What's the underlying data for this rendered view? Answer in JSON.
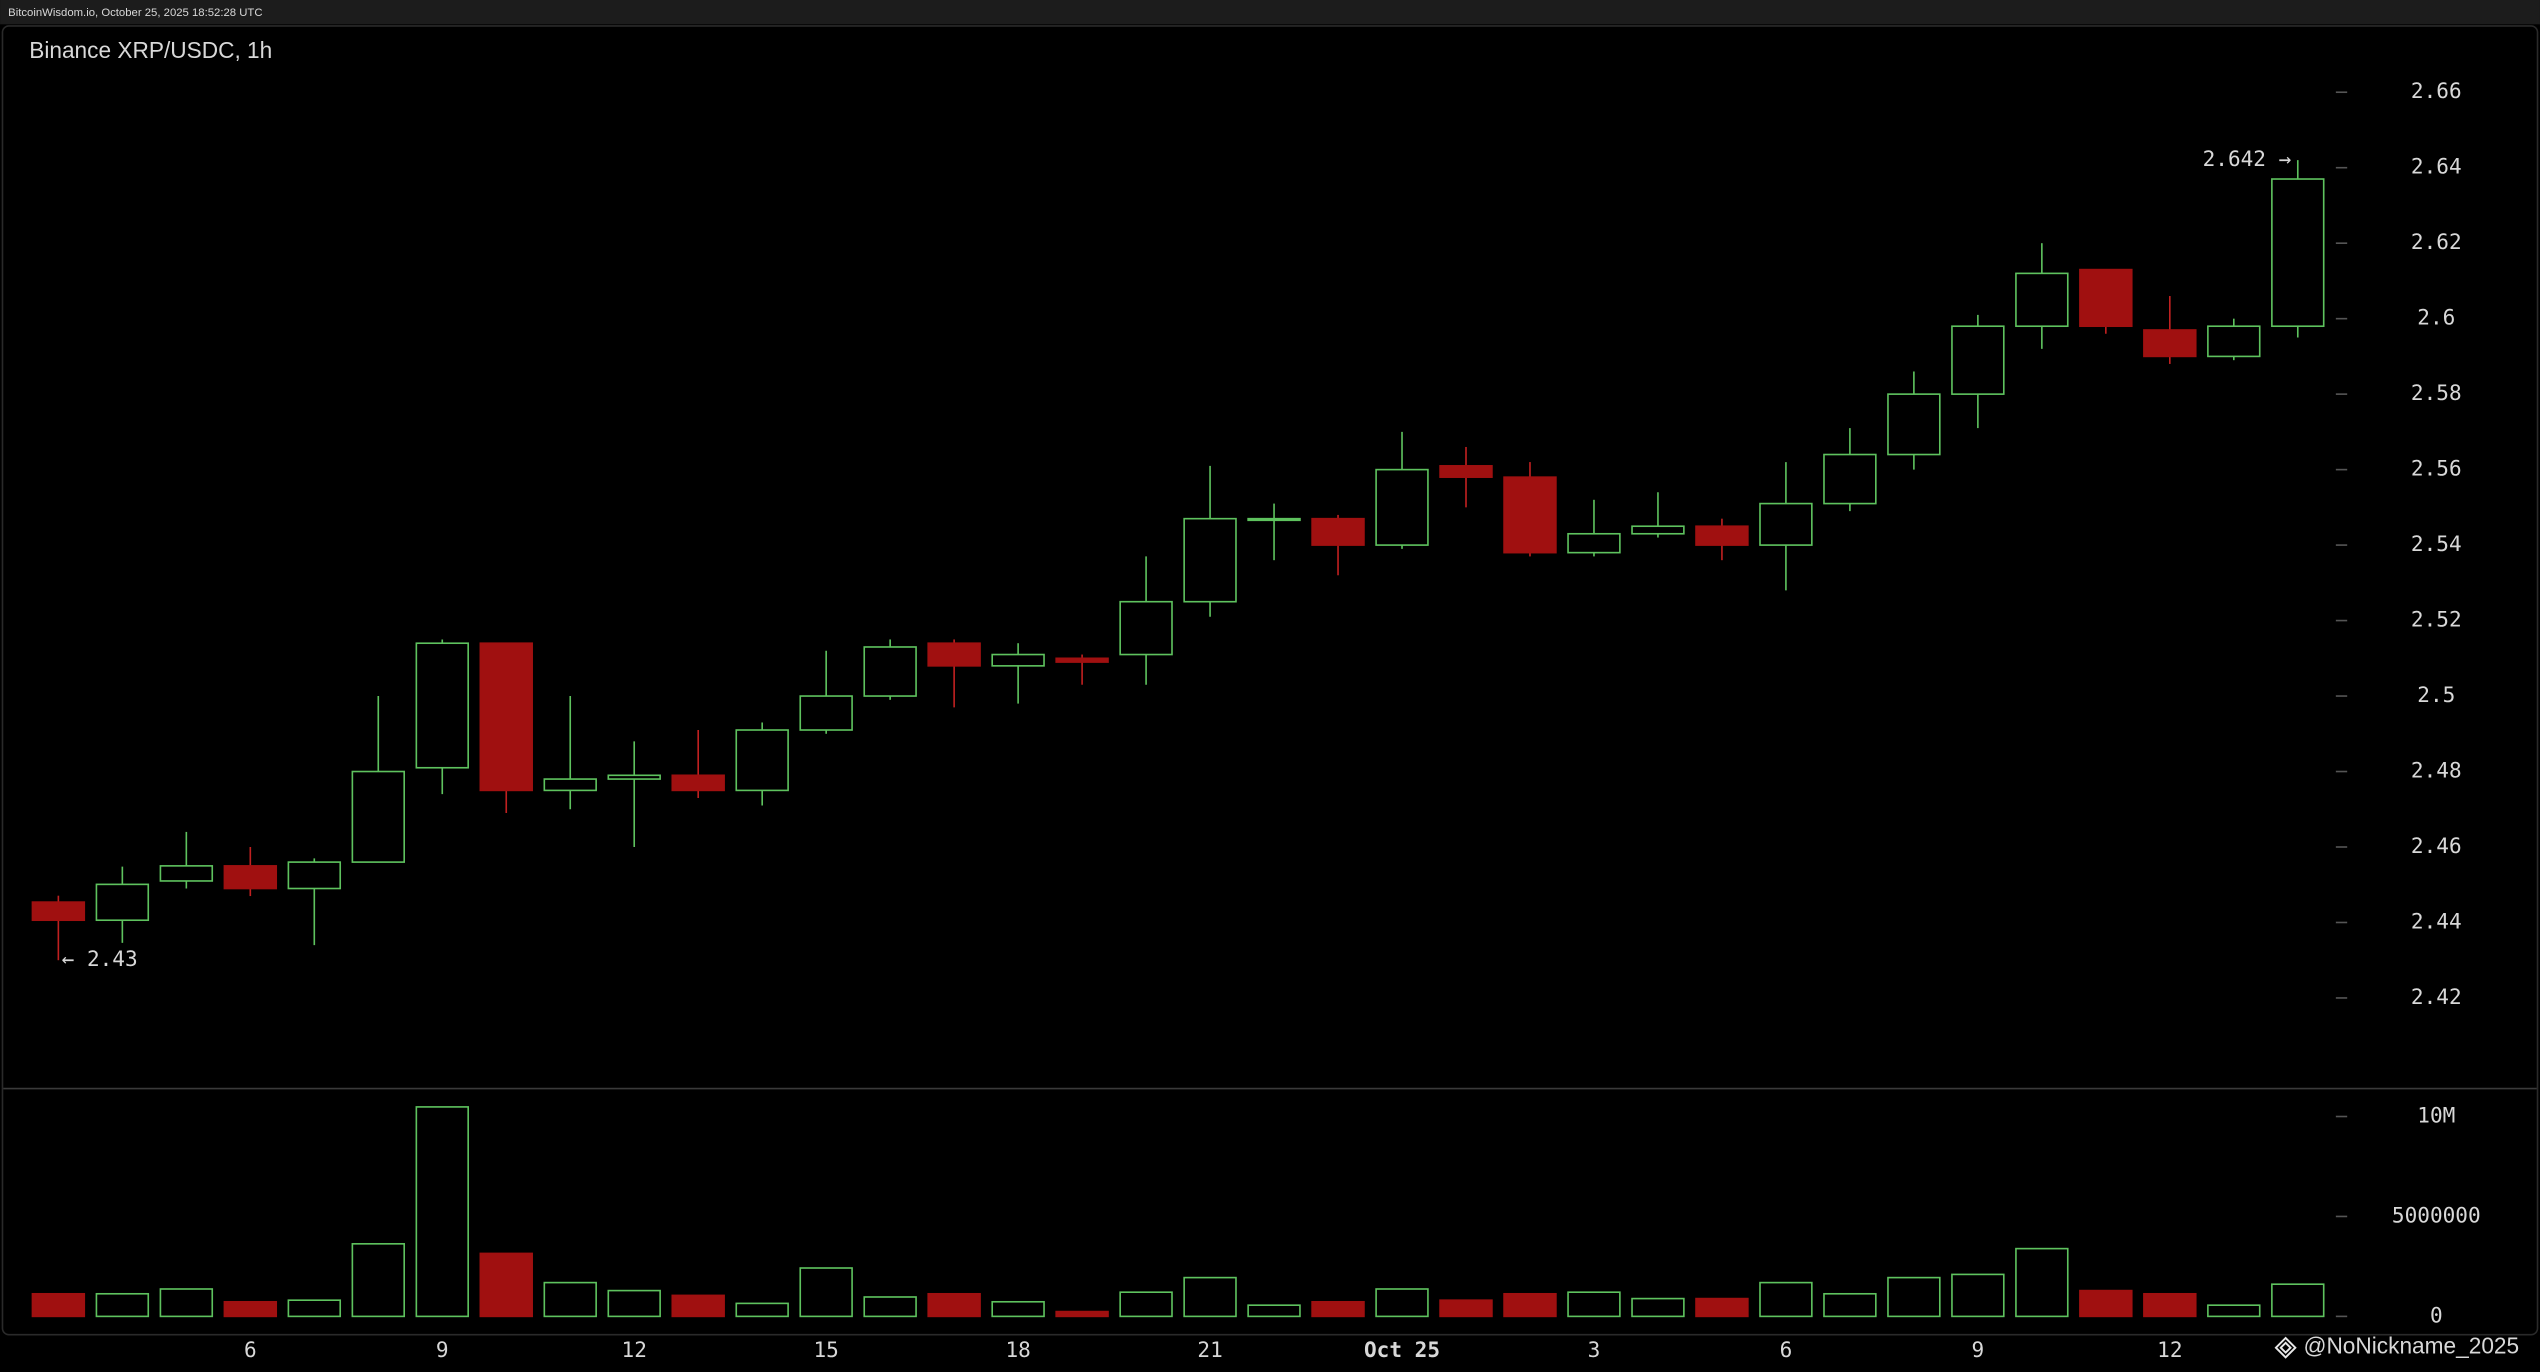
{
  "header": "BitcoinWisdom.io, October 25, 2025 18:52:28 UTC",
  "watermark": "@NoNickname_2025",
  "chart_data": {
    "type": "candlestick",
    "title": "Binance XRP/USDC, 1h",
    "up_color": "#5ec25e",
    "down_color": "#a01010",
    "categories": [
      null,
      null,
      null,
      "6",
      null,
      null,
      "9",
      null,
      null,
      "12",
      null,
      null,
      "15",
      null,
      null,
      "18",
      null,
      null,
      "21",
      null,
      null,
      "Oct 25",
      null,
      null,
      "3",
      null,
      null,
      "6",
      null,
      null,
      "9",
      null,
      null,
      "12",
      null,
      null
    ],
    "open": [
      2.4454,
      2.4406,
      2.451,
      2.455,
      2.449,
      2.456,
      2.481,
      2.514,
      2.475,
      2.478,
      2.479,
      2.475,
      2.491,
      2.5,
      2.514,
      2.508,
      2.51,
      2.511,
      2.525,
      2.547,
      2.547,
      2.54,
      2.561,
      2.558,
      2.538,
      2.543,
      2.545,
      2.54,
      2.551,
      2.564,
      2.58,
      2.598,
      2.613,
      2.597,
      2.59,
      2.598
    ],
    "high": [
      2.4471,
      2.4548,
      2.464,
      2.46,
      2.457,
      2.5,
      2.515,
      2.514,
      2.5,
      2.488,
      2.491,
      2.493,
      2.512,
      2.515,
      2.515,
      2.514,
      2.511,
      2.537,
      2.561,
      2.551,
      2.548,
      2.57,
      2.566,
      2.562,
      2.552,
      2.554,
      2.547,
      2.562,
      2.571,
      2.586,
      2.601,
      2.62,
      2.613,
      2.606,
      2.6,
      2.642
    ],
    "low": [
      2.43,
      2.4346,
      2.449,
      2.447,
      2.434,
      2.456,
      2.474,
      2.469,
      2.47,
      2.46,
      2.473,
      2.471,
      2.49,
      2.499,
      2.497,
      2.498,
      2.503,
      2.503,
      2.521,
      2.536,
      2.532,
      2.539,
      2.55,
      2.537,
      2.537,
      2.542,
      2.536,
      2.528,
      2.549,
      2.56,
      2.571,
      2.592,
      2.596,
      2.588,
      2.589,
      2.595
    ],
    "close": [
      2.4406,
      2.4501,
      2.455,
      2.449,
      2.456,
      2.48,
      2.514,
      2.475,
      2.478,
      2.479,
      2.475,
      2.491,
      2.5,
      2.513,
      2.508,
      2.511,
      2.509,
      2.525,
      2.547,
      2.547,
      2.54,
      2.56,
      2.558,
      2.538,
      2.543,
      2.545,
      2.54,
      2.551,
      2.564,
      2.58,
      2.598,
      2.612,
      2.598,
      2.59,
      2.598,
      2.637
    ],
    "ylim": [
      2.396,
      2.678
    ],
    "yticks": [
      2.42,
      2.44,
      2.46,
      2.48,
      2.5,
      2.52,
      2.54,
      2.56,
      2.58,
      2.6,
      2.62,
      2.64,
      2.66
    ],
    "annotations": [
      {
        "text": "2.642 →",
        "value": 2.642,
        "index": 35
      },
      {
        "text": "← 2.43",
        "value": 2.43,
        "index": 0
      }
    ],
    "volume": {
      "values": [
        1130000,
        1130000,
        1370000,
        730000,
        810000,
        3630000,
        10480000,
        3150000,
        1690000,
        1290000,
        1050000,
        650000,
        2420000,
        970000,
        1130000,
        730000,
        240000,
        1210000,
        1940000,
        560000,
        730000,
        1370000,
        810000,
        1130000,
        1210000,
        890000,
        890000,
        1690000,
        1130000,
        1940000,
        2100000,
        3390000,
        1290000,
        1130000,
        560000,
        1610000
      ],
      "ylim": [
        -1000000,
        11400000
      ],
      "yticks": [
        0,
        5000000,
        {
          "value": 10000000,
          "label": "10M"
        }
      ]
    }
  }
}
